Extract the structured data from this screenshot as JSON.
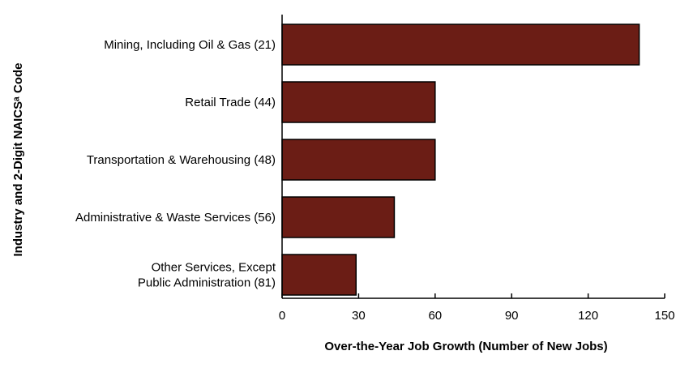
{
  "chart_data": {
    "type": "bar",
    "orientation": "horizontal",
    "categories": [
      [
        "Mining, Including Oil & Gas (21)"
      ],
      [
        "Retail Trade (44)"
      ],
      [
        "Transportation & Warehousing (48)"
      ],
      [
        "Administrative & Waste Services (56)"
      ],
      [
        "Other Services, Except",
        "Public Administration (81)"
      ]
    ],
    "values": [
      140,
      60,
      60,
      44,
      29
    ],
    "xlabel": "Over-the-Year Job Growth (Number of New Jobs)",
    "ylabel": "Industry and 2-Digit NAICSᵃ Code",
    "xlim": [
      0,
      150
    ],
    "xticks": [
      0,
      30,
      60,
      90,
      120,
      150
    ],
    "grid": false,
    "bar_color": "#6b1d15"
  }
}
